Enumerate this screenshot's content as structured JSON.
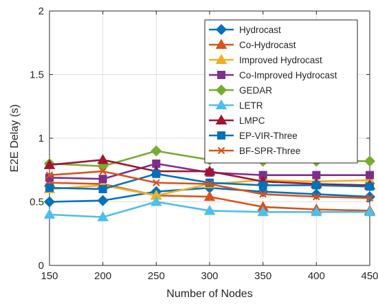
{
  "chart_data": {
    "type": "line",
    "xlabel": "Number of Nodes",
    "ylabel": "E2E Delay (s)",
    "x": [
      150,
      200,
      250,
      300,
      350,
      400,
      450
    ],
    "xlim": [
      150,
      450
    ],
    "ylim": [
      0,
      2
    ],
    "xticks": [
      "150",
      "200",
      "250",
      "300",
      "350",
      "400",
      "450"
    ],
    "yticks": [
      "0",
      "0.5",
      "1",
      "1.5",
      "2"
    ],
    "grid": true,
    "legend_position": "top-right",
    "series": [
      {
        "name": "Hydrocast",
        "color": "#0072BD",
        "marker": "diamond",
        "values": [
          0.5,
          0.51,
          0.58,
          0.61,
          0.58,
          0.56,
          0.54
        ]
      },
      {
        "name": "Co-Hydrocast",
        "color": "#D95319",
        "marker": "triangle",
        "values": [
          0.65,
          0.64,
          0.55,
          0.54,
          0.46,
          0.44,
          0.43
        ]
      },
      {
        "name": "Improved Hydrocast",
        "color": "#EDB120",
        "marker": "triangle",
        "values": [
          0.6,
          0.63,
          0.55,
          0.64,
          0.67,
          0.66,
          0.67
        ]
      },
      {
        "name": "Co-Improved Hydrocast",
        "color": "#7E2F8E",
        "marker": "square",
        "values": [
          0.69,
          0.68,
          0.8,
          0.73,
          0.71,
          0.71,
          0.71
        ]
      },
      {
        "name": "GEDAR",
        "color": "#77AC30",
        "marker": "diamond",
        "values": [
          0.8,
          0.78,
          0.9,
          0.83,
          0.82,
          0.82,
          0.82
        ]
      },
      {
        "name": "LETR",
        "color": "#4DBEEE",
        "marker": "triangle",
        "values": [
          0.4,
          0.38,
          0.5,
          0.43,
          0.42,
          0.42,
          0.42
        ]
      },
      {
        "name": "LMPC",
        "color": "#A2142F",
        "marker": "triangle",
        "values": [
          0.79,
          0.83,
          0.74,
          0.74,
          0.66,
          0.64,
          0.63
        ]
      },
      {
        "name": "EP-VIR-Three",
        "color": "#0072BD",
        "marker": "square",
        "values": [
          0.61,
          0.6,
          0.72,
          0.65,
          0.63,
          0.63,
          0.62
        ]
      },
      {
        "name": "BF-SPR-Three",
        "color": "#D95319",
        "marker": "x",
        "values": [
          0.71,
          0.74,
          0.65,
          0.64,
          0.56,
          0.54,
          0.53
        ]
      }
    ]
  }
}
